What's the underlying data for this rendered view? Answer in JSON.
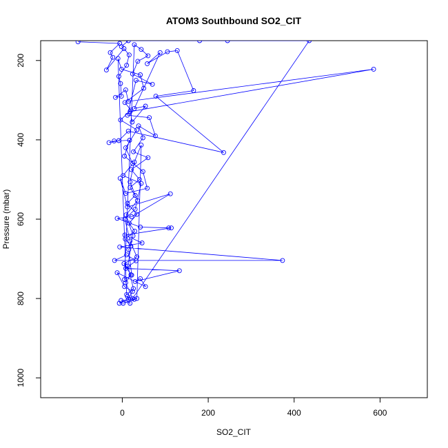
{
  "chart_data": {
    "type": "line",
    "title": "ATOM3 Southbound SO2_CIT",
    "xlabel": "SO2_CIT",
    "ylabel": "Pressure (mbar)",
    "xlim": [
      -190,
      710
    ],
    "ylim": [
      1050,
      150
    ],
    "y_reversed": true,
    "x_ticks": [
      0,
      200,
      400,
      600
    ],
    "y_ticks": [
      200,
      400,
      600,
      800,
      1000
    ],
    "grid": false,
    "legend": "none",
    "series": [
      {
        "color": "#0000ff",
        "marker": "open-circle",
        "points": [
          [
            -103,
            153
          ],
          [
            -6,
            157
          ],
          [
            -28,
            180
          ],
          [
            -22,
            192
          ],
          [
            -37,
            224
          ],
          [
            4,
            170
          ],
          [
            16,
            186
          ],
          [
            10,
            212
          ],
          [
            -8,
            240
          ],
          [
            -4,
            258
          ],
          [
            -2,
            290
          ],
          [
            -16,
            293
          ],
          [
            8,
            274
          ],
          [
            14,
            303
          ],
          [
            585,
            222
          ],
          [
            18,
            329
          ],
          [
            23,
            355
          ],
          [
            54,
            315
          ],
          [
            28,
            321
          ],
          [
            88,
            180
          ],
          [
            58,
            208
          ],
          [
            105,
            178
          ],
          [
            128,
            175
          ],
          [
            166,
            276
          ],
          [
            78,
            290
          ],
          [
            236,
            432
          ],
          [
            14,
            378
          ],
          [
            -8,
            402
          ],
          [
            -31,
            407
          ],
          [
            -19,
            403
          ],
          [
            17,
            401
          ],
          [
            5,
            441
          ],
          [
            48,
            480
          ],
          [
            58,
            522
          ],
          [
            8,
            535
          ],
          [
            -5,
            497
          ],
          [
            12,
            569
          ],
          [
            112,
            536
          ],
          [
            22,
            594
          ],
          [
            -12,
            598
          ],
          [
            42,
            620
          ],
          [
            108,
            622
          ],
          [
            114,
            622
          ],
          [
            6,
            640
          ],
          [
            46,
            660
          ],
          [
            -6,
            670
          ],
          [
            373,
            704
          ],
          [
            -18,
            704
          ],
          [
            10,
            690
          ],
          [
            32,
            705
          ],
          [
            8,
            724
          ],
          [
            133,
            730
          ],
          [
            30,
            757
          ],
          [
            42,
            750
          ],
          [
            54,
            770
          ],
          [
            -12,
            735
          ],
          [
            5,
            770
          ],
          [
            24,
            782
          ],
          [
            14,
            802
          ],
          [
            -7,
            812
          ],
          [
            2,
            812
          ],
          [
            28,
            802
          ],
          [
            12,
            795
          ],
          [
            18,
            812
          ],
          [
            -3,
            805
          ],
          [
            34,
            800
          ],
          [
            44,
            413
          ],
          [
            28,
            456
          ],
          [
            18,
            506
          ],
          [
            35,
            553
          ],
          [
            9,
            589
          ],
          [
            25,
            642
          ],
          [
            15,
            677
          ],
          [
            22,
            741
          ],
          [
            5,
            752
          ],
          [
            28,
            160
          ],
          [
            44,
            172
          ],
          [
            60,
            188
          ],
          [
            36,
            202
          ],
          [
            24,
            234
          ],
          [
            70,
            260
          ],
          [
            32,
            250
          ],
          [
            12,
            338
          ],
          [
            63,
            344
          ],
          [
            77,
            390
          ],
          [
            38,
            365
          ],
          [
            48,
            395
          ],
          [
            26,
            430
          ],
          [
            60,
            445
          ],
          [
            21,
            475
          ],
          [
            40,
            500
          ],
          [
            18,
            520
          ],
          [
            30,
            540
          ],
          [
            12,
            560
          ],
          [
            34,
            588
          ],
          [
            16,
            610
          ],
          [
            29,
            630
          ],
          [
            7,
            650
          ],
          [
            20,
            668
          ],
          [
            13,
            718
          ],
          [
            26,
            775
          ],
          [
            10,
            790
          ],
          [
            -10,
            195
          ],
          [
            -2,
            222
          ],
          [
            42,
            236
          ],
          [
            50,
            270
          ],
          [
            6,
            306
          ],
          [
            20,
            325
          ],
          [
            -4,
            350
          ],
          [
            34,
            375
          ],
          [
            8,
            420
          ],
          [
            24,
            460
          ],
          [
            2,
            490
          ],
          [
            44,
            510
          ],
          [
            30,
            575
          ],
          [
            6,
            600
          ],
          [
            18,
            655
          ],
          [
            34,
            695
          ],
          [
            4,
            712
          ],
          [
            20,
            740
          ],
          [
            8,
            760
          ],
          [
            24,
            800
          ],
          [
            435,
            150
          ],
          [
            180,
            150
          ],
          [
            245,
            150
          ],
          [
            14,
            150
          ],
          [
            -2,
            165
          ]
        ]
      }
    ]
  }
}
